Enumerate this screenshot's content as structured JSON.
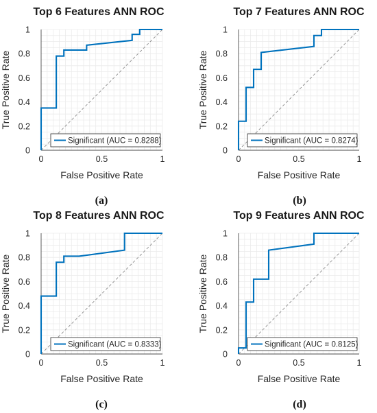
{
  "style": {
    "line_color": "#0072BD",
    "diagonal_color": "#8c8c8c",
    "grid": true
  },
  "chart_data": [
    {
      "type": "line",
      "title": "Top 6 Features ANN ROC",
      "xlabel": "False Positive Rate",
      "ylabel": "True Positive Rate",
      "xlim": [
        0,
        1
      ],
      "ylim": [
        0,
        1
      ],
      "xticks": [
        "0",
        "0.5",
        "1"
      ],
      "yticks": [
        "0",
        "0.2",
        "0.4",
        "0.6",
        "0.8",
        "1"
      ],
      "legend": "Significant (AUC = 0.8288)",
      "legend_position": "bottom-right",
      "caption": "(a)",
      "series": [
        {
          "name": "Significant (AUC = 0.8288)",
          "x": [
            0,
            0,
            0.125,
            0.125,
            0.1875,
            0.1875,
            0.375,
            0.375,
            0.75,
            0.75,
            0.8125,
            0.8125,
            1
          ],
          "y": [
            0,
            0.35,
            0.35,
            0.78,
            0.78,
            0.83,
            0.83,
            0.87,
            0.91,
            0.96,
            0.96,
            1,
            1
          ]
        }
      ]
    },
    {
      "type": "line",
      "title": "Top 7 Features ANN ROC",
      "xlabel": "False Positive Rate",
      "ylabel": "True Positive Rate",
      "xlim": [
        0,
        1
      ],
      "ylim": [
        0,
        1
      ],
      "xticks": [
        "0",
        "0.5",
        "1"
      ],
      "yticks": [
        "0",
        "0.2",
        "0.4",
        "0.6",
        "0.8",
        "1"
      ],
      "legend": "Significant (AUC = 0.8274)",
      "legend_position": "bottom-right",
      "caption": "(b)",
      "series": [
        {
          "name": "Significant (AUC = 0.8274)",
          "x": [
            0,
            0,
            0.0625,
            0.0625,
            0.125,
            0.125,
            0.1875,
            0.1875,
            0.625,
            0.625,
            0.6875,
            0.6875,
            1
          ],
          "y": [
            0,
            0.24,
            0.24,
            0.52,
            0.52,
            0.67,
            0.67,
            0.81,
            0.86,
            0.95,
            0.95,
            1,
            1
          ]
        }
      ]
    },
    {
      "type": "line",
      "title": "Top 8 Features ANN ROC",
      "xlabel": "False Positive Rate",
      "ylabel": "True Positive Rate",
      "xlim": [
        0,
        1
      ],
      "ylim": [
        0,
        1
      ],
      "xticks": [
        "0",
        "0.5",
        "1"
      ],
      "yticks": [
        "0",
        "0.2",
        "0.4",
        "0.6",
        "0.8",
        "1"
      ],
      "legend": "Significant (AUC = 0.8333)",
      "legend_position": "bottom-right",
      "caption": "(c)",
      "series": [
        {
          "name": "Significant (AUC = 0.8333)",
          "x": [
            0,
            0,
            0.125,
            0.125,
            0.1875,
            0.1875,
            0.3125,
            0.6875,
            0.6875,
            1
          ],
          "y": [
            0,
            0.48,
            0.48,
            0.76,
            0.76,
            0.81,
            0.81,
            0.86,
            1,
            1
          ]
        }
      ]
    },
    {
      "type": "line",
      "title": "Top 9 Features ANN ROC",
      "xlabel": "False Positive Rate",
      "ylabel": "True Positive Rate",
      "xlim": [
        0,
        1
      ],
      "ylim": [
        0,
        1
      ],
      "xticks": [
        "0",
        "0.5",
        "1"
      ],
      "yticks": [
        "0",
        "0.2",
        "0.4",
        "0.6",
        "0.8",
        "1"
      ],
      "legend": "Significant (AUC = 0.8125)",
      "legend_position": "bottom-right",
      "caption": "(d)",
      "series": [
        {
          "name": "Significant (AUC = 0.8125)",
          "x": [
            0,
            0,
            0.0625,
            0.0625,
            0.125,
            0.125,
            0.25,
            0.25,
            0.625,
            0.625,
            1
          ],
          "y": [
            0,
            0.05,
            0.05,
            0.43,
            0.43,
            0.62,
            0.62,
            0.86,
            0.91,
            1,
            1
          ]
        }
      ]
    }
  ]
}
